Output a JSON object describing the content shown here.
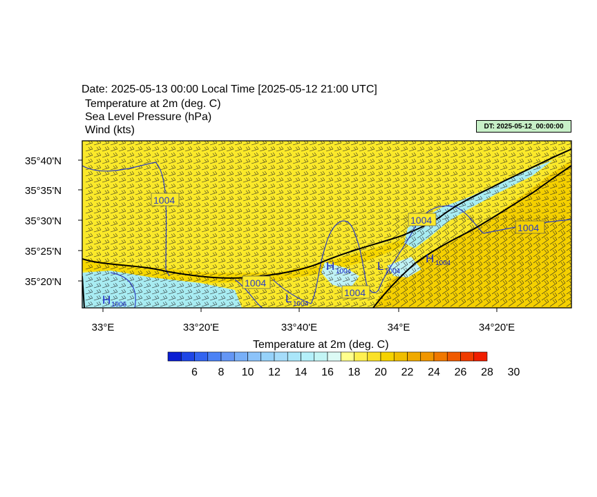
{
  "header": {
    "date_line": "Date: 2025-05-13  00:00 Local Time [2025-05-12  21:00 UTC]",
    "field1": "Temperature at 2m   (deg. C)",
    "field2": "Sea Level Pressure   (hPa)",
    "field3": "Wind   (kts)",
    "dt_label": "DT: 2025-05-12_00:00:00"
  },
  "map": {
    "lat_labels": [
      "35°40'N",
      "35°35'N",
      "35°30'N",
      "35°25'N",
      "35°20'N"
    ],
    "lon_labels": [
      "33°E",
      "33°20'E",
      "33°40'E",
      "34°E",
      "34°20'E"
    ],
    "isobar_labels": [
      "1004",
      "1004",
      "1004",
      "1004",
      "1004"
    ],
    "pressure_centers": [
      {
        "letter": "H",
        "value": "1006"
      },
      {
        "letter": "L",
        "value": "1004"
      },
      {
        "letter": "H",
        "value": "1004"
      },
      {
        "letter": "L",
        "value": "1004"
      },
      {
        "letter": "H",
        "value": "1004"
      }
    ],
    "colors": {
      "land_warm": "#f5d800",
      "land_light": "#fbe92a",
      "sea_cool": "#a8ecf2",
      "sea_cooler": "#8fdcec",
      "isobar": "#2a3cc0",
      "coast": "#000000"
    }
  },
  "colorbar": {
    "title": "Temperature at 2m  (deg. C)",
    "tick_labels": [
      "6",
      "8",
      "10",
      "12",
      "14",
      "16",
      "18",
      "20",
      "22",
      "24",
      "26",
      "28",
      "30"
    ],
    "colors": [
      "#0a1ed2",
      "#1e46e6",
      "#3264f0",
      "#4b82f5",
      "#6496f5",
      "#78aff8",
      "#8cc3fa",
      "#96d2fa",
      "#a5dcfa",
      "#aae6fa",
      "#b4f0fa",
      "#c3f5f5",
      "#dcfaf5",
      "#ffff8c",
      "#fff050",
      "#fae128",
      "#f5d200",
      "#f0be00",
      "#f0aa00",
      "#f09600",
      "#f07800",
      "#f05a00",
      "#f03c00",
      "#f01e00"
    ]
  }
}
